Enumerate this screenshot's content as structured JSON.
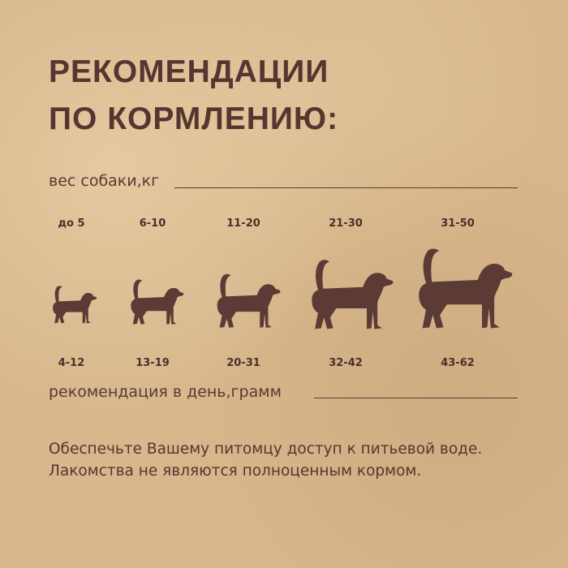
{
  "title": {
    "line1": "РЕКОМЕНДАЦИИ",
    "line2": "ПО КОРМЛЕНИЮ:"
  },
  "weight_label": "вес собаки,кг",
  "daily_label": "рекомендация в день,грамм",
  "colors": {
    "background": "#d8b78c",
    "text": "#5a3a33",
    "dog": "#5c3b36"
  },
  "groups": [
    {
      "weight": "до 5",
      "grams": "4-12",
      "icon": "dog-silhouette-icon"
    },
    {
      "weight": "6-10",
      "grams": "13-19",
      "icon": "dog-silhouette-icon"
    },
    {
      "weight": "11-20",
      "grams": "20-31",
      "icon": "dog-silhouette-icon"
    },
    {
      "weight": "21-30",
      "grams": "32-42",
      "icon": "dog-silhouette-icon"
    },
    {
      "weight": "31-50",
      "grams": "43-62",
      "icon": "dog-silhouette-icon"
    }
  ],
  "note": {
    "line1": "Обеспечьте Вашему питомцу доступ к питьевой воде.",
    "line2": "Лакомства не являются полноценным кормом."
  }
}
